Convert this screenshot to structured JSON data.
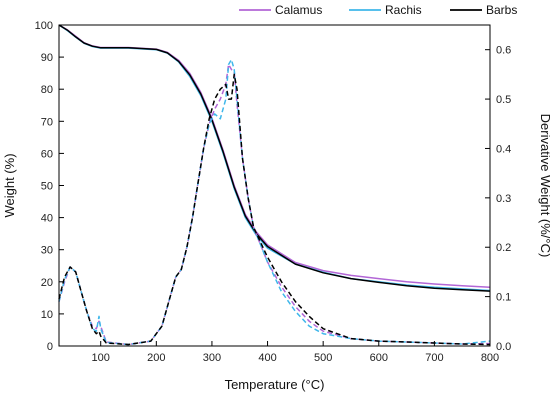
{
  "chart_data": {
    "type": "line",
    "title": "",
    "xlabel": "Temperature (°C)",
    "ylabel_left": "Weight (%)",
    "ylabel_right": "Derivative Weight (%/°C)",
    "xlim": [
      25,
      800
    ],
    "ylim_left": [
      0,
      100
    ],
    "ylim_right": [
      0,
      0.65
    ],
    "x_ticks": [
      100,
      200,
      300,
      400,
      500,
      600,
      700,
      800
    ],
    "y_ticks_left": [
      0,
      10,
      20,
      30,
      40,
      50,
      60,
      70,
      80,
      90,
      100
    ],
    "y_ticks_right": [
      "0.0",
      "0.1",
      "0.2",
      "0.3",
      "0.4",
      "0.5",
      "0.6"
    ],
    "grid": false,
    "legend_position": "top-right",
    "legend": [
      {
        "label": "Calamus",
        "color": "#b266d6"
      },
      {
        "label": "Rachis",
        "color": "#3fb7ea"
      },
      {
        "label": "Barbs",
        "color": "#000000"
      }
    ],
    "series": [
      {
        "name": "Calamus",
        "axis": "left",
        "style": "solid",
        "color": "#b266d6",
        "x": [
          25,
          40,
          55,
          70,
          85,
          100,
          150,
          200,
          220,
          240,
          260,
          280,
          300,
          320,
          340,
          360,
          380,
          400,
          450,
          500,
          550,
          600,
          650,
          700,
          750,
          800
        ],
        "y": [
          100,
          98.5,
          96.5,
          94.5,
          93.5,
          93,
          93,
          92.5,
          91.5,
          89,
          85,
          79,
          71,
          61,
          50,
          41,
          35.5,
          31.5,
          26,
          23.5,
          22,
          21,
          20,
          19.3,
          18.8,
          18.3
        ]
      },
      {
        "name": "Rachis",
        "axis": "left",
        "style": "solid",
        "color": "#3fb7ea",
        "x": [
          25,
          40,
          55,
          70,
          85,
          100,
          150,
          200,
          220,
          240,
          260,
          280,
          300,
          320,
          340,
          360,
          380,
          400,
          450,
          500,
          550,
          600,
          650,
          700,
          750,
          800
        ],
        "y": [
          100,
          98.3,
          96.2,
          94.3,
          93.3,
          92.8,
          92.8,
          92.3,
          91.2,
          88.5,
          84,
          78,
          70,
          60,
          49,
          40,
          34.5,
          30.5,
          25.5,
          23,
          21,
          20,
          19,
          18.3,
          17.8,
          17.3
        ]
      },
      {
        "name": "Barbs",
        "axis": "left",
        "style": "solid",
        "color": "#000000",
        "x": [
          25,
          40,
          55,
          70,
          85,
          100,
          150,
          200,
          220,
          240,
          260,
          280,
          300,
          320,
          340,
          360,
          380,
          400,
          450,
          500,
          550,
          600,
          650,
          700,
          750,
          800
        ],
        "y": [
          100,
          98.4,
          96.3,
          94.4,
          93.4,
          92.9,
          92.9,
          92.4,
          91.3,
          88.7,
          84.5,
          78.5,
          70.5,
          60.5,
          49.5,
          40.5,
          35,
          31,
          25.5,
          22.8,
          21,
          19.8,
          18.8,
          18,
          17.5,
          17.1
        ]
      },
      {
        "name": "Calamus",
        "axis": "right",
        "style": "dashed",
        "color": "#b266d6",
        "x": [
          25,
          35,
          45,
          55,
          65,
          75,
          85,
          92,
          97,
          100,
          110,
          150,
          190,
          210,
          225,
          235,
          245,
          255,
          265,
          275,
          285,
          295,
          305,
          315,
          325,
          330,
          335,
          340,
          345,
          355,
          365,
          375,
          400,
          425,
          450,
          475,
          500,
          550,
          600,
          650,
          700,
          750,
          800
        ],
        "y": [
          0.09,
          0.13,
          0.16,
          0.15,
          0.11,
          0.07,
          0.04,
          0.035,
          0.05,
          0.04,
          0.008,
          0.003,
          0.01,
          0.04,
          0.1,
          0.14,
          0.155,
          0.2,
          0.26,
          0.33,
          0.4,
          0.45,
          0.48,
          0.5,
          0.53,
          0.57,
          0.56,
          0.555,
          0.49,
          0.38,
          0.3,
          0.24,
          0.17,
          0.12,
          0.08,
          0.05,
          0.03,
          0.015,
          0.01,
          0.008,
          0.006,
          0.004,
          0.005
        ]
      },
      {
        "name": "Rachis",
        "axis": "right",
        "style": "dashed",
        "color": "#3fb7ea",
        "x": [
          25,
          35,
          45,
          55,
          65,
          75,
          85,
          92,
          97,
          100,
          110,
          150,
          190,
          210,
          225,
          235,
          245,
          255,
          265,
          275,
          285,
          295,
          305,
          315,
          325,
          330,
          335,
          340,
          345,
          355,
          365,
          375,
          400,
          425,
          450,
          475,
          500,
          550,
          600,
          650,
          700,
          750,
          800
        ],
        "y": [
          0.09,
          0.135,
          0.16,
          0.15,
          0.11,
          0.07,
          0.035,
          0.03,
          0.06,
          0.035,
          0.007,
          0.003,
          0.01,
          0.04,
          0.1,
          0.14,
          0.155,
          0.2,
          0.26,
          0.33,
          0.4,
          0.45,
          0.47,
          0.46,
          0.5,
          0.57,
          0.58,
          0.56,
          0.5,
          0.38,
          0.3,
          0.24,
          0.17,
          0.11,
          0.07,
          0.04,
          0.025,
          0.015,
          0.01,
          0.008,
          0.006,
          0.004,
          0.01
        ]
      },
      {
        "name": "Barbs",
        "axis": "right",
        "style": "dashed",
        "color": "#000000",
        "x": [
          25,
          35,
          45,
          55,
          65,
          75,
          85,
          92,
          97,
          100,
          110,
          150,
          190,
          210,
          225,
          235,
          245,
          255,
          265,
          275,
          285,
          295,
          305,
          315,
          325,
          330,
          335,
          340,
          345,
          355,
          365,
          375,
          400,
          425,
          450,
          475,
          500,
          550,
          600,
          650,
          700,
          750,
          800
        ],
        "y": [
          0.095,
          0.14,
          0.16,
          0.15,
          0.11,
          0.07,
          0.035,
          0.025,
          0.03,
          0.02,
          0.006,
          0.003,
          0.01,
          0.04,
          0.1,
          0.14,
          0.155,
          0.2,
          0.26,
          0.33,
          0.4,
          0.46,
          0.5,
          0.52,
          0.53,
          0.5,
          0.5,
          0.55,
          0.52,
          0.38,
          0.3,
          0.24,
          0.18,
          0.13,
          0.09,
          0.06,
          0.035,
          0.015,
          0.01,
          0.008,
          0.006,
          0.004,
          0.003
        ]
      }
    ]
  }
}
